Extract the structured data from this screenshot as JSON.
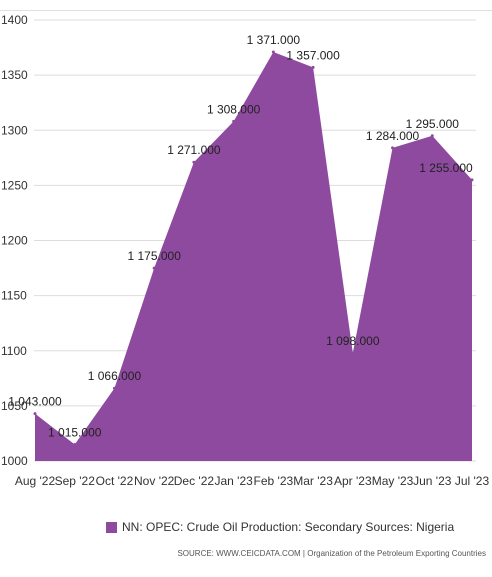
{
  "chart_data": {
    "type": "area",
    "x": [
      "Aug '22",
      "Sep '22",
      "Oct '22",
      "Nov '22",
      "Dec '22",
      "Jan '23",
      "Feb '23",
      "Mar '23",
      "Apr '23",
      "May '23",
      "Jun '23",
      "Jul '23"
    ],
    "series": [
      {
        "name": "NN: OPEC: Crude Oil Production: Secondary Sources: Nigeria",
        "values": [
          1043,
          1015,
          1066,
          1175,
          1271,
          1308,
          1371,
          1357,
          1098,
          1284,
          1295,
          1255
        ],
        "labels": [
          "1 043.000",
          "1 015.000",
          "1 066.000",
          "1 175.000",
          "1 271.000",
          "1 308.000",
          "1 371.000",
          "1 357.000",
          "1 098.000",
          "1 284.000",
          "1 295.000",
          "1 255.000"
        ],
        "color": "#8e4a9e"
      }
    ],
    "yticks": [
      "1000",
      "1050",
      "1100",
      "1150",
      "1200",
      "1250",
      "1300",
      "1350",
      "1400"
    ],
    "ylim": [
      1000,
      1400
    ],
    "grid": true,
    "legend_position": "bottom"
  },
  "source": "SOURCE: WWW.CEICDATA.COM | Organization of the Petroleum Exporting Countries"
}
